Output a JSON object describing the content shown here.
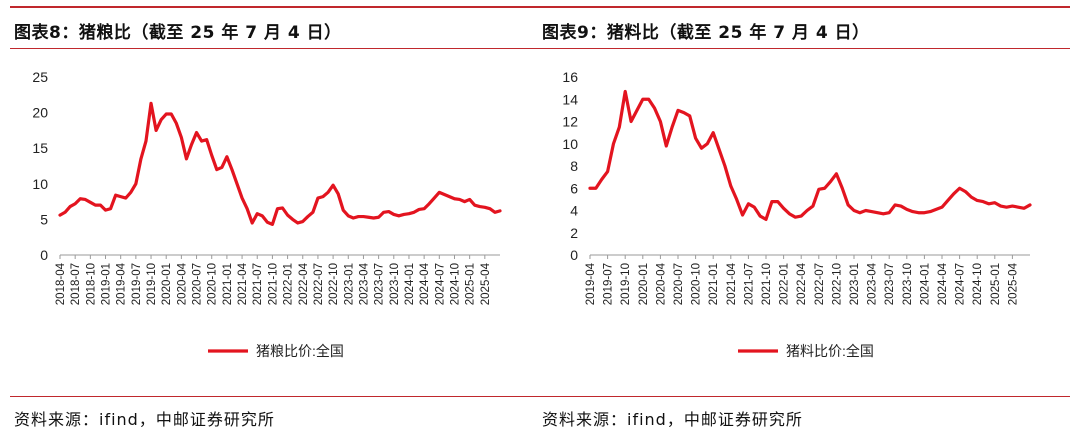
{
  "charts": [
    {
      "title": "图表8：猪粮比（截至 25 年 7 月 4 日）",
      "source": "资料来源：ifind，中邮证券研究所",
      "chart_data": {
        "type": "line",
        "ylim": [
          0,
          25
        ],
        "yticks": [
          0,
          5,
          10,
          15,
          20,
          25
        ],
        "x_range": [
          "2018-04",
          "2025-07"
        ],
        "categories": [
          "2018-04",
          "2018-07",
          "2018-10",
          "2019-01",
          "2019-04",
          "2019-07",
          "2019-10",
          "2020-01",
          "2020-04",
          "2020-07",
          "2020-10",
          "2021-01",
          "2021-04",
          "2021-07",
          "2021-10",
          "2022-01",
          "2022-04",
          "2022-07",
          "2022-10",
          "2023-01",
          "2023-04",
          "2023-07",
          "2023-10",
          "2024-01",
          "2024-04",
          "2024-07",
          "2024-10",
          "2025-01",
          "2025-04"
        ],
        "series": [
          {
            "name": "猪粮比价:全国",
            "color": "#e3141f",
            "points": [
              [
                "2018-04",
                5.6
              ],
              [
                "2018-05",
                6.0
              ],
              [
                "2018-06",
                6.8
              ],
              [
                "2018-07",
                7.2
              ],
              [
                "2018-08",
                7.9
              ],
              [
                "2018-09",
                7.8
              ],
              [
                "2018-10",
                7.4
              ],
              [
                "2018-11",
                7.0
              ],
              [
                "2018-12",
                7.0
              ],
              [
                "2019-01",
                6.3
              ],
              [
                "2019-02",
                6.5
              ],
              [
                "2019-03",
                8.4
              ],
              [
                "2019-04",
                8.2
              ],
              [
                "2019-05",
                8.0
              ],
              [
                "2019-06",
                8.8
              ],
              [
                "2019-07",
                10.0
              ],
              [
                "2019-08",
                13.5
              ],
              [
                "2019-09",
                16.0
              ],
              [
                "2019-10",
                21.3
              ],
              [
                "2019-11",
                17.5
              ],
              [
                "2019-12",
                19.0
              ],
              [
                "2020-01",
                19.8
              ],
              [
                "2020-02",
                19.8
              ],
              [
                "2020-03",
                18.5
              ],
              [
                "2020-04",
                16.5
              ],
              [
                "2020-05",
                13.5
              ],
              [
                "2020-06",
                15.5
              ],
              [
                "2020-07",
                17.2
              ],
              [
                "2020-08",
                16.0
              ],
              [
                "2020-09",
                16.2
              ],
              [
                "2020-10",
                14.0
              ],
              [
                "2020-11",
                12.0
              ],
              [
                "2020-12",
                12.3
              ],
              [
                "2021-01",
                13.8
              ],
              [
                "2021-02",
                12.0
              ],
              [
                "2021-03",
                10.0
              ],
              [
                "2021-04",
                8.0
              ],
              [
                "2021-05",
                6.5
              ],
              [
                "2021-06",
                4.5
              ],
              [
                "2021-07",
                5.8
              ],
              [
                "2021-08",
                5.5
              ],
              [
                "2021-09",
                4.6
              ],
              [
                "2021-10",
                4.3
              ],
              [
                "2021-11",
                6.5
              ],
              [
                "2021-12",
                6.6
              ],
              [
                "2022-01",
                5.6
              ],
              [
                "2022-02",
                5.0
              ],
              [
                "2022-03",
                4.5
              ],
              [
                "2022-04",
                4.7
              ],
              [
                "2022-05",
                5.4
              ],
              [
                "2022-06",
                6.0
              ],
              [
                "2022-07",
                8.0
              ],
              [
                "2022-08",
                8.2
              ],
              [
                "2022-09",
                8.8
              ],
              [
                "2022-10",
                9.8
              ],
              [
                "2022-11",
                8.6
              ],
              [
                "2022-12",
                6.3
              ],
              [
                "2023-01",
                5.5
              ],
              [
                "2023-02",
                5.2
              ],
              [
                "2023-03",
                5.4
              ],
              [
                "2023-04",
                5.4
              ],
              [
                "2023-05",
                5.3
              ],
              [
                "2023-06",
                5.2
              ],
              [
                "2023-07",
                5.3
              ],
              [
                "2023-08",
                6.0
              ],
              [
                "2023-09",
                6.1
              ],
              [
                "2023-10",
                5.7
              ],
              [
                "2023-11",
                5.5
              ],
              [
                "2023-12",
                5.7
              ],
              [
                "2024-01",
                5.8
              ],
              [
                "2024-02",
                6.0
              ],
              [
                "2024-03",
                6.4
              ],
              [
                "2024-04",
                6.5
              ],
              [
                "2024-05",
                7.2
              ],
              [
                "2024-06",
                8.0
              ],
              [
                "2024-07",
                8.8
              ],
              [
                "2024-08",
                8.5
              ],
              [
                "2024-09",
                8.2
              ],
              [
                "2024-10",
                7.9
              ],
              [
                "2024-11",
                7.8
              ],
              [
                "2024-12",
                7.5
              ],
              [
                "2025-01",
                7.8
              ],
              [
                "2025-02",
                7.0
              ],
              [
                "2025-03",
                6.8
              ],
              [
                "2025-04",
                6.7
              ],
              [
                "2025-05",
                6.5
              ],
              [
                "2025-06",
                6.0
              ],
              [
                "2025-07",
                6.2
              ]
            ]
          }
        ],
        "legend": "bottom",
        "grid": false
      }
    },
    {
      "title": "图表9：猪料比（截至 25 年 7 月 4 日）",
      "source": "资料来源：ifind，中邮证券研究所",
      "chart_data": {
        "type": "line",
        "ylim": [
          0,
          16
        ],
        "yticks": [
          0,
          2,
          4,
          6,
          8,
          10,
          12,
          14,
          16
        ],
        "x_range": [
          "2019-04",
          "2025-07"
        ],
        "categories": [
          "2019-04",
          "2019-07",
          "2019-10",
          "2020-01",
          "2020-04",
          "2020-07",
          "2020-10",
          "2021-01",
          "2021-04",
          "2021-07",
          "2021-10",
          "2022-01",
          "2022-04",
          "2022-07",
          "2022-10",
          "2023-01",
          "2023-04",
          "2023-07",
          "2023-10",
          "2024-01",
          "2024-04",
          "2024-07",
          "2024-10",
          "2025-01",
          "2025-04"
        ],
        "series": [
          {
            "name": "猪料比价:全国",
            "color": "#e3141f",
            "points": [
              [
                "2019-04",
                6.0
              ],
              [
                "2019-05",
                6.0
              ],
              [
                "2019-06",
                6.8
              ],
              [
                "2019-07",
                7.5
              ],
              [
                "2019-08",
                10.0
              ],
              [
                "2019-09",
                11.5
              ],
              [
                "2019-10",
                14.7
              ],
              [
                "2019-11",
                12.0
              ],
              [
                "2019-12",
                13.0
              ],
              [
                "2020-01",
                14.0
              ],
              [
                "2020-02",
                14.0
              ],
              [
                "2020-03",
                13.2
              ],
              [
                "2020-04",
                12.0
              ],
              [
                "2020-05",
                9.8
              ],
              [
                "2020-06",
                11.5
              ],
              [
                "2020-07",
                13.0
              ],
              [
                "2020-08",
                12.8
              ],
              [
                "2020-09",
                12.5
              ],
              [
                "2020-10",
                10.5
              ],
              [
                "2020-11",
                9.6
              ],
              [
                "2020-12",
                10.0
              ],
              [
                "2021-01",
                11.0
              ],
              [
                "2021-02",
                9.5
              ],
              [
                "2021-03",
                8.0
              ],
              [
                "2021-04",
                6.2
              ],
              [
                "2021-05",
                5.0
              ],
              [
                "2021-06",
                3.6
              ],
              [
                "2021-07",
                4.6
              ],
              [
                "2021-08",
                4.3
              ],
              [
                "2021-09",
                3.5
              ],
              [
                "2021-10",
                3.2
              ],
              [
                "2021-11",
                4.8
              ],
              [
                "2021-12",
                4.8
              ],
              [
                "2022-01",
                4.2
              ],
              [
                "2022-02",
                3.7
              ],
              [
                "2022-03",
                3.4
              ],
              [
                "2022-04",
                3.5
              ],
              [
                "2022-05",
                4.0
              ],
              [
                "2022-06",
                4.4
              ],
              [
                "2022-07",
                5.9
              ],
              [
                "2022-08",
                6.0
              ],
              [
                "2022-09",
                6.6
              ],
              [
                "2022-10",
                7.3
              ],
              [
                "2022-11",
                6.0
              ],
              [
                "2022-12",
                4.5
              ],
              [
                "2023-01",
                4.0
              ],
              [
                "2023-02",
                3.8
              ],
              [
                "2023-03",
                4.0
              ],
              [
                "2023-04",
                3.9
              ],
              [
                "2023-05",
                3.8
              ],
              [
                "2023-06",
                3.7
              ],
              [
                "2023-07",
                3.8
              ],
              [
                "2023-08",
                4.5
              ],
              [
                "2023-09",
                4.4
              ],
              [
                "2023-10",
                4.1
              ],
              [
                "2023-11",
                3.9
              ],
              [
                "2023-12",
                3.8
              ],
              [
                "2024-01",
                3.8
              ],
              [
                "2024-02",
                3.9
              ],
              [
                "2024-03",
                4.1
              ],
              [
                "2024-04",
                4.3
              ],
              [
                "2024-05",
                4.9
              ],
              [
                "2024-06",
                5.5
              ],
              [
                "2024-07",
                6.0
              ],
              [
                "2024-08",
                5.7
              ],
              [
                "2024-09",
                5.2
              ],
              [
                "2024-10",
                4.9
              ],
              [
                "2024-11",
                4.8
              ],
              [
                "2024-12",
                4.6
              ],
              [
                "2025-01",
                4.7
              ],
              [
                "2025-02",
                4.4
              ],
              [
                "2025-03",
                4.3
              ],
              [
                "2025-04",
                4.4
              ],
              [
                "2025-05",
                4.3
              ],
              [
                "2025-06",
                4.2
              ],
              [
                "2025-07",
                4.5
              ]
            ]
          }
        ],
        "legend": "bottom",
        "grid": false
      }
    }
  ]
}
